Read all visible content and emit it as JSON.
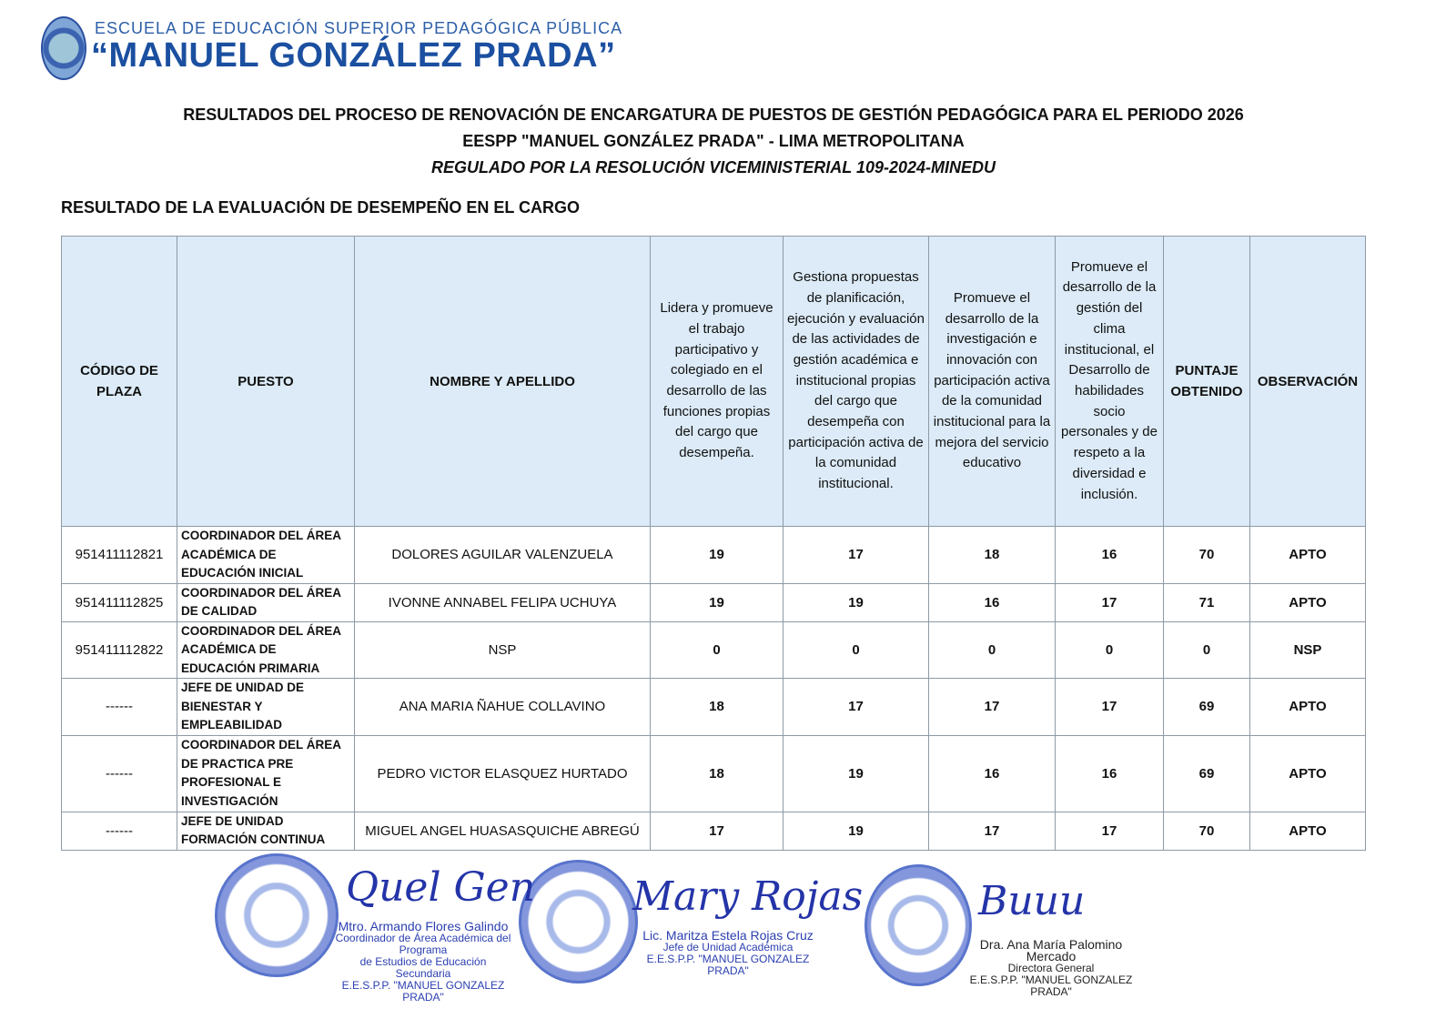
{
  "header": {
    "school_top": "ESCUELA DE EDUCACIÓN SUPERIOR PEDAGÓGICA PÚBLICA",
    "school_name": "“MANUEL GONZÁLEZ PRADA”",
    "title1": "RESULTADOS DEL PROCESO DE RENOVACIÓN DE ENCARGATURA DE PUESTOS DE GESTIÓN PEDAGÓGICA PARA EL PERIODO 2026",
    "title2": "EESPP \"MANUEL GONZÁLEZ PRADA\" - LIMA METROPOLITANA",
    "title3": "REGULADO POR LA RESOLUCIÓN VICEMINISTERIAL 109-2024-MINEDU"
  },
  "section_title": "RESULTADO DE LA EVALUACIÓN DE DESEMPEÑO EN EL CARGO",
  "table": {
    "columns": [
      "CÓDIGO DE PLAZA",
      "PUESTO",
      "NOMBRE Y APELLIDO",
      "Lidera y promueve el trabajo participativo y colegiado en el desarrollo de las funciones propias del cargo que desempeña.",
      "Gestiona propuestas de planificación, ejecución y evaluación de las actividades de gestión académica e institucional propias del cargo que desempeña con participación activa de la comunidad institucional.",
      "Promueve el desarrollo de la investigación e innovación con participación activa de la comunidad institucional para la mejora del servicio educativo",
      "Promueve el desarrollo de la gestión del clima institucional, el Desarrollo de habilidades socio personales y de respeto a la diversidad e inclusión.",
      "PUNTAJE OBTENIDO",
      "OBSERVACIÓN"
    ],
    "rows": [
      [
        "951411112821",
        "COORDINADOR DEL ÁREA ACADÉMICA DE EDUCACIÓN INICIAL",
        "DOLORES AGUILAR VALENZUELA",
        "19",
        "17",
        "18",
        "16",
        "70",
        "APTO"
      ],
      [
        "951411112825",
        "COORDINADOR DEL ÁREA DE CALIDAD",
        "IVONNE ANNABEL FELIPA UCHUYA",
        "19",
        "19",
        "16",
        "17",
        "71",
        "APTO"
      ],
      [
        "951411112822",
        "COORDINADOR DEL ÁREA ACADÉMICA DE EDUCACIÓN PRIMARIA",
        "NSP",
        "0",
        "0",
        "0",
        "0",
        "0",
        "NSP"
      ],
      [
        "------",
        "JEFE DE UNIDAD DE BIENESTAR Y EMPLEABILIDAD",
        "ANA MARIA ÑAHUE COLLAVINO",
        "18",
        "17",
        "17",
        "17",
        "69",
        "APTO"
      ],
      [
        "------",
        "COORDINADOR DEL ÁREA DE PRACTICA PRE PROFESIONAL E INVESTIGACIÓN",
        "PEDRO VICTOR ELASQUEZ HURTADO",
        "18",
        "19",
        "16",
        "16",
        "69",
        "APTO"
      ],
      [
        "------",
        "JEFE DE UNIDAD FORMACIÓN CONTINUA",
        "MIGUEL ANGEL HUASASQUICHE ABREGÚ",
        "17",
        "19",
        "17",
        "17",
        "70",
        "APTO"
      ]
    ]
  },
  "signatures": [
    {
      "name": "Mtro. Armando Flores Galindo",
      "line1": "Coordinador de Área Académica del Programa",
      "line2": "de Estudios de Educación Secundaria",
      "line3": "E.E.S.P.P. \"MANUEL GONZALEZ PRADA\""
    },
    {
      "name": "Lic. Maritza Estela Rojas Cruz",
      "line1": "Jefe de Unidad Académica",
      "line2": "E.E.S.P.P. \"MANUEL GONZALEZ PRADA\""
    },
    {
      "name": "Dra. Ana María Palomino Mercado",
      "line1": "Directora General",
      "line2": "E.E.S.P.P. \"MANUEL GONZALEZ PRADA\""
    }
  ],
  "colors": {
    "header_fill": "#dcebf7",
    "brand_blue": "#1b4fa0",
    "ink_blue": "#2b3fb0"
  }
}
